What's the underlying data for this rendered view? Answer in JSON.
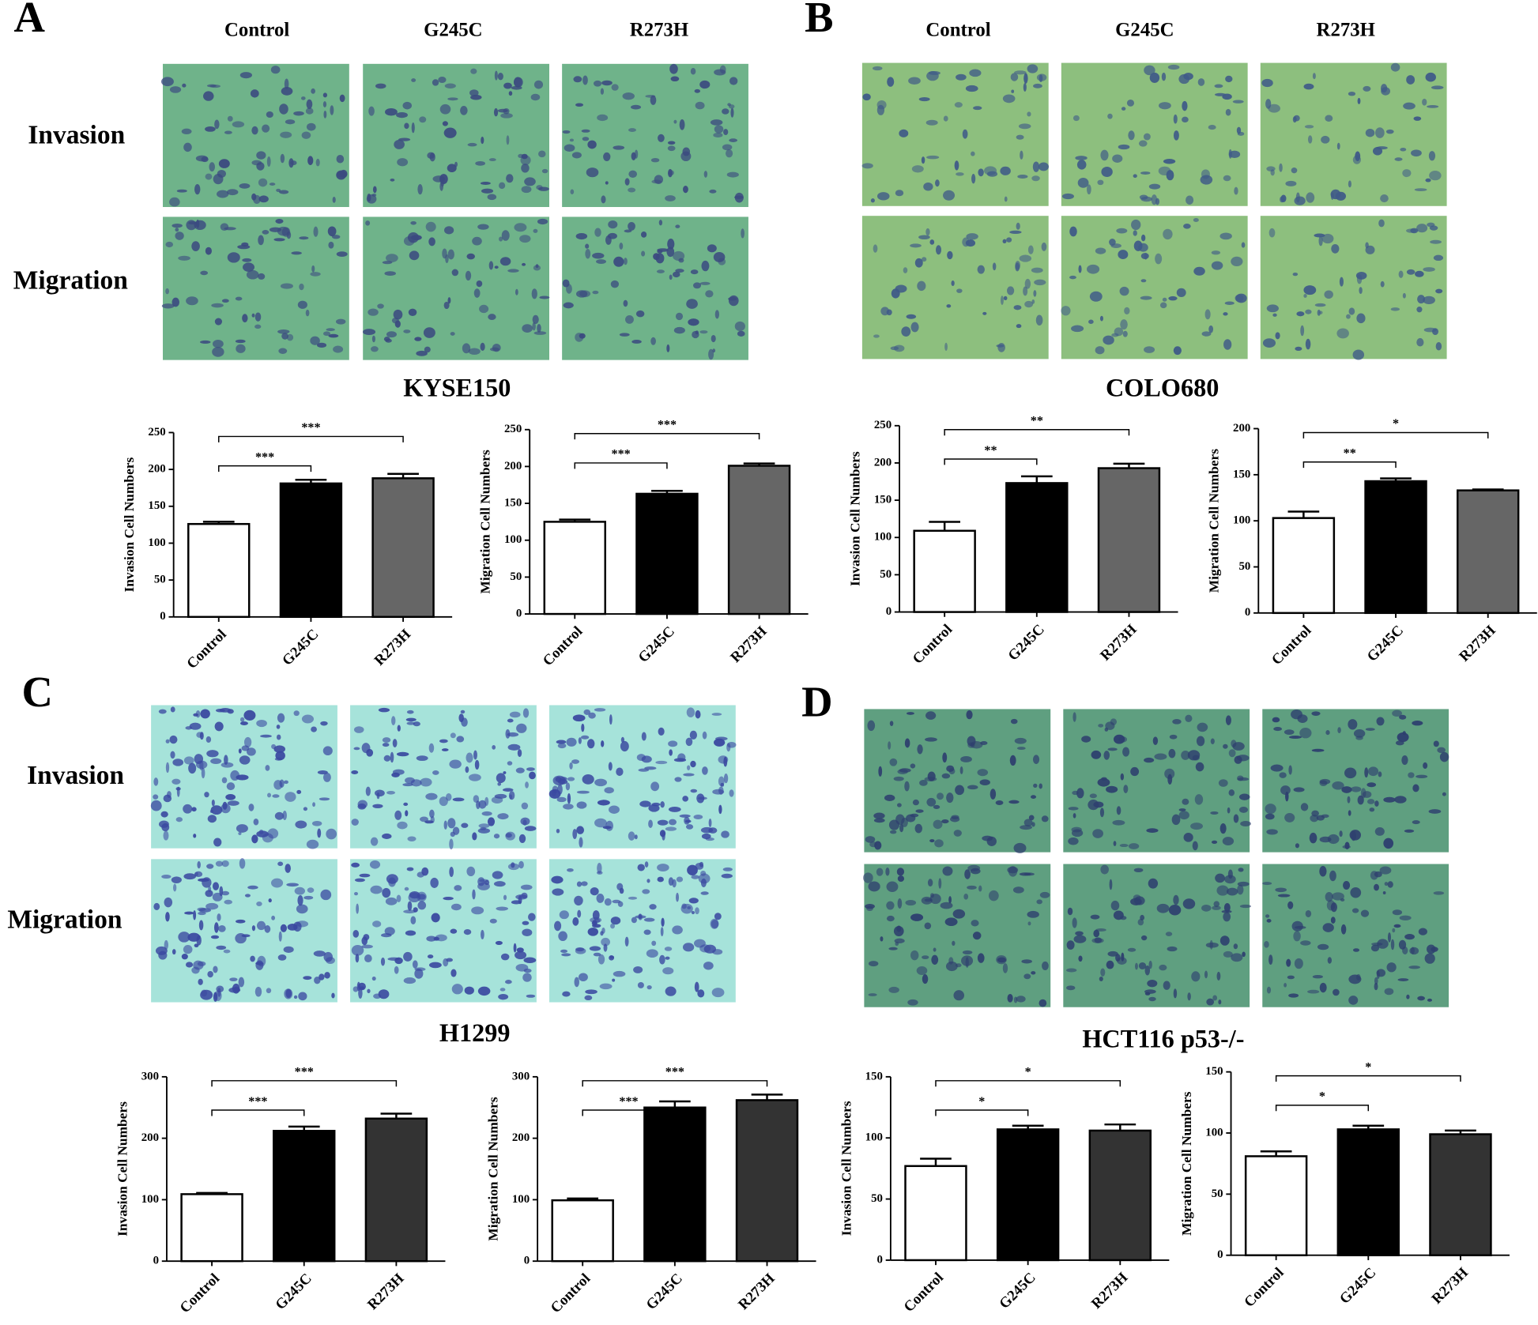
{
  "panels": [
    {
      "letter": "A",
      "columns": [
        "Control",
        "G245C",
        "R273H"
      ],
      "rows": [
        "Invasion",
        "Migration"
      ],
      "cell_line": "KYSE150"
    },
    {
      "letter": "B",
      "columns": [
        "Control",
        "G245C",
        "R273H"
      ],
      "cell_line": "COLO680"
    },
    {
      "letter": "C",
      "rows": [
        "Invasion",
        "Migration"
      ],
      "cell_line": "H1299"
    },
    {
      "letter": "D",
      "cell_line": "HCT116 p53-/-"
    }
  ],
  "chart_data": [
    {
      "type": "bar",
      "ylabel": "Invasion Cell Numbers",
      "categories": [
        "Control",
        "G245C",
        "R273H"
      ],
      "values": [
        126,
        181,
        188
      ],
      "errors": [
        3,
        5,
        6
      ],
      "colors": [
        "#ffffff",
        "#000000",
        "#666666"
      ],
      "ylim": [
        0,
        250
      ],
      "yticks": [
        0,
        50,
        100,
        150,
        200,
        250
      ],
      "significance": [
        "***",
        "***"
      ]
    },
    {
      "type": "bar",
      "ylabel": "Migration Cell Numbers",
      "categories": [
        "Control",
        "G245C",
        "R273H"
      ],
      "values": [
        125,
        163,
        201
      ],
      "errors": [
        3,
        4,
        3
      ],
      "colors": [
        "#ffffff",
        "#000000",
        "#666666"
      ],
      "ylim": [
        0,
        250
      ],
      "yticks": [
        0,
        50,
        100,
        150,
        200,
        250
      ],
      "significance": [
        "***",
        "***"
      ]
    },
    {
      "type": "bar",
      "ylabel": "Invasion Cell Numbers",
      "categories": [
        "Control",
        "G245C",
        "R273H"
      ],
      "values": [
        109,
        173,
        193
      ],
      "errors": [
        12,
        9,
        6
      ],
      "colors": [
        "#ffffff",
        "#000000",
        "#666666"
      ],
      "ylim": [
        0,
        250
      ],
      "yticks": [
        0,
        50,
        100,
        150,
        200,
        250
      ],
      "significance": [
        "**",
        "**"
      ]
    },
    {
      "type": "bar",
      "ylabel": "Migration Cell Numbers",
      "categories": [
        "Control",
        "G245C",
        "R273H"
      ],
      "values": [
        103,
        143,
        133
      ],
      "errors": [
        7,
        3,
        1
      ],
      "colors": [
        "#ffffff",
        "#000000",
        "#666666"
      ],
      "ylim": [
        0,
        200
      ],
      "yticks": [
        0,
        50,
        100,
        150,
        200
      ],
      "significance": [
        "**",
        "*"
      ]
    },
    {
      "type": "bar",
      "ylabel": "Invasion Cell Numbers",
      "categories": [
        "Control",
        "G245C",
        "R273H"
      ],
      "values": [
        109,
        212,
        232
      ],
      "errors": [
        2,
        7,
        8
      ],
      "colors": [
        "#ffffff",
        "#000000",
        "#333333"
      ],
      "ylim": [
        0,
        300
      ],
      "yticks": [
        0,
        100,
        200,
        300
      ],
      "significance": [
        "***",
        "***"
      ]
    },
    {
      "type": "bar",
      "ylabel": "Migration Cell Numbers",
      "categories": [
        "Control",
        "G245C",
        "R273H"
      ],
      "values": [
        99,
        250,
        262
      ],
      "errors": [
        3,
        10,
        9
      ],
      "colors": [
        "#ffffff",
        "#000000",
        "#333333"
      ],
      "ylim": [
        0,
        300
      ],
      "yticks": [
        0,
        100,
        200,
        300
      ],
      "significance": [
        "***",
        "***"
      ]
    },
    {
      "type": "bar",
      "ylabel": "Invasion Cell Numbers",
      "categories": [
        "Control",
        "G245C",
        "R273H"
      ],
      "values": [
        77,
        107,
        106
      ],
      "errors": [
        6,
        3,
        5
      ],
      "colors": [
        "#ffffff",
        "#000000",
        "#333333"
      ],
      "ylim": [
        0,
        150
      ],
      "yticks": [
        0,
        50,
        100,
        150
      ],
      "significance": [
        "*",
        "*"
      ]
    },
    {
      "type": "bar",
      "ylabel": "Migration Cell Numbers",
      "categories": [
        "Control",
        "G245C",
        "R273H"
      ],
      "values": [
        81,
        103,
        99
      ],
      "errors": [
        4,
        3,
        3
      ],
      "colors": [
        "#ffffff",
        "#000000",
        "#333333"
      ],
      "ylim": [
        0,
        150
      ],
      "yticks": [
        0,
        50,
        100,
        150
      ],
      "significance": [
        "*",
        "*"
      ]
    }
  ]
}
